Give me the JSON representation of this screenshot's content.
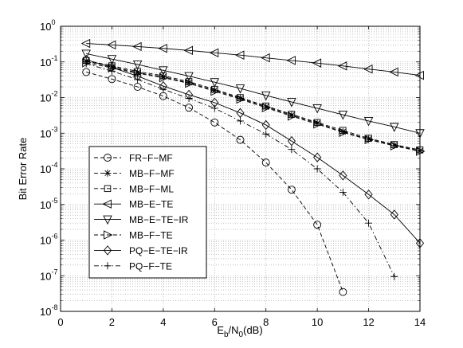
{
  "chart_data": {
    "type": "line",
    "xlabel_parts": {
      "main": "E",
      "sub1": "b",
      "mid": "/N",
      "sub2": "0",
      "tail": "(dB)"
    },
    "ylabel": "Bit Error Rate",
    "xlim": [
      0,
      14
    ],
    "ylim": [
      1e-08,
      1
    ],
    "yscale": "log",
    "grid": true,
    "legend_position": "lower-left",
    "x_ticks": [
      "0",
      "2",
      "4",
      "6",
      "8",
      "10",
      "12",
      "14"
    ],
    "y_ticks": [
      {
        "base": "10",
        "exp": "0"
      },
      {
        "base": "10",
        "exp": "-1"
      },
      {
        "base": "10",
        "exp": "-2"
      },
      {
        "base": "10",
        "exp": "-3"
      },
      {
        "base": "10",
        "exp": "-4"
      },
      {
        "base": "10",
        "exp": "-5"
      },
      {
        "base": "10",
        "exp": "-6"
      },
      {
        "base": "10",
        "exp": "-7"
      },
      {
        "base": "10",
        "exp": "-8"
      }
    ],
    "series": [
      {
        "name": "FR−F−MF",
        "marker": "circle",
        "dash": "dashed",
        "x": [
          1,
          2,
          3,
          4,
          5,
          6,
          7,
          8,
          9,
          10,
          11
        ],
        "y": [
          0.052,
          0.033,
          0.02,
          0.011,
          0.0052,
          0.002,
          0.00065,
          0.00015,
          2.6e-05,
          2.7e-06,
          3.5e-08
        ]
      },
      {
        "name": "MB−F−MF",
        "marker": "star",
        "dash": "dashed",
        "x": [
          1,
          2,
          3,
          4,
          5,
          6,
          7,
          8,
          9,
          10,
          11,
          12,
          13,
          14
        ],
        "y": [
          0.105,
          0.073,
          0.05,
          0.038,
          0.026,
          0.016,
          0.0095,
          0.0055,
          0.0032,
          0.0019,
          0.0011,
          0.00068,
          0.00046,
          0.00032
        ]
      },
      {
        "name": "MB−F−ML",
        "marker": "square",
        "dash": "dashed",
        "x": [
          1,
          2,
          3,
          4,
          5,
          6,
          7,
          8,
          9,
          10,
          11,
          12,
          13,
          14
        ],
        "y": [
          0.11,
          0.078,
          0.054,
          0.041,
          0.028,
          0.017,
          0.01,
          0.0058,
          0.0034,
          0.002,
          0.0012,
          0.00072,
          0.00048,
          0.00034
        ]
      },
      {
        "name": "MB−E−TE",
        "marker": "triangle-left",
        "dash": "solid",
        "x": [
          1,
          2,
          3,
          4,
          5,
          6,
          7,
          8,
          9,
          10,
          11,
          12,
          13,
          14
        ],
        "y": [
          0.33,
          0.3,
          0.27,
          0.24,
          0.21,
          0.18,
          0.155,
          0.13,
          0.11,
          0.093,
          0.077,
          0.063,
          0.052,
          0.042
        ]
      },
      {
        "name": "MB−E−TE−IR",
        "marker": "triangle-down",
        "dash": "solid",
        "x": [
          1,
          2,
          3,
          4,
          5,
          6,
          7,
          8,
          9,
          10,
          11,
          12,
          13,
          14
        ],
        "y": [
          0.17,
          0.12,
          0.085,
          0.058,
          0.04,
          0.027,
          0.018,
          0.0115,
          0.0075,
          0.005,
          0.0033,
          0.0022,
          0.0015,
          0.001
        ]
      },
      {
        "name": "MB−F−TE",
        "marker": "triangle-right",
        "dash": "dashed",
        "x": [
          1,
          2,
          3,
          4,
          5,
          6,
          7,
          8,
          9,
          10,
          11,
          12,
          13,
          14
        ],
        "y": [
          0.095,
          0.068,
          0.048,
          0.036,
          0.025,
          0.015,
          0.009,
          0.0052,
          0.003,
          0.0018,
          0.00105,
          0.00066,
          0.00044,
          0.00031
        ]
      },
      {
        "name": "PQ−E−TE−IR",
        "marker": "diamond",
        "dash": "solid",
        "x": [
          1,
          2,
          3,
          4,
          5,
          6,
          7,
          8,
          9,
          10,
          11,
          12,
          13,
          14
        ],
        "y": [
          0.115,
          0.07,
          0.04,
          0.021,
          0.012,
          0.0072,
          0.0037,
          0.0017,
          0.0006,
          0.00021,
          6.5e-05,
          1.9e-05,
          5.2e-06,
          8.2e-07
        ]
      },
      {
        "name": "PQ−F−TE",
        "marker": "plus",
        "dash": "dashdot",
        "x": [
          1,
          2,
          3,
          4,
          5,
          6,
          7,
          8,
          9,
          10,
          11,
          12,
          13
        ],
        "y": [
          0.09,
          0.055,
          0.032,
          0.017,
          0.0095,
          0.005,
          0.0022,
          0.00095,
          0.00035,
          0.0001,
          2.2e-05,
          3e-06,
          9.5e-08
        ]
      }
    ]
  }
}
